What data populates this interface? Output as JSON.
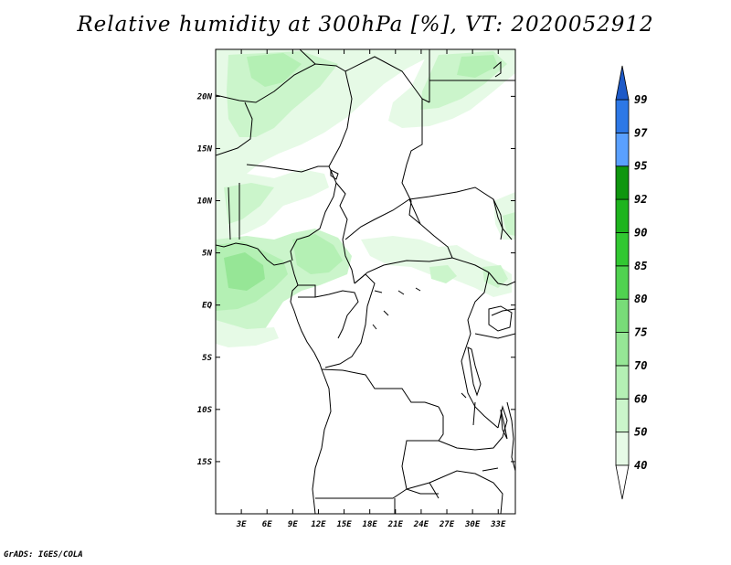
{
  "title": "Relative humidity at 300hPa [%], VT: 2020052912",
  "credit": "GrADS: IGES/COLA",
  "map": {
    "lon_range": [
      0,
      35
    ],
    "lat_range": [
      -20,
      24.5
    ],
    "x_ticks": [
      "3E",
      "6E",
      "9E",
      "12E",
      "15E",
      "18E",
      "21E",
      "24E",
      "27E",
      "30E",
      "33E"
    ],
    "x_tick_values": [
      3,
      6,
      9,
      12,
      15,
      18,
      21,
      24,
      27,
      30,
      33
    ],
    "y_ticks": [
      "20N",
      "15N",
      "10N",
      "5N",
      "EQ",
      "5S",
      "10S",
      "15S"
    ],
    "y_tick_values": [
      20,
      15,
      10,
      5,
      0,
      -5,
      -10,
      -15
    ]
  },
  "colorbar": {
    "levels": [
      "40",
      "50",
      "60",
      "70",
      "75",
      "80",
      "85",
      "90",
      "92",
      "95",
      "97",
      "99"
    ],
    "colors": [
      "#ffffff",
      "#e6fae6",
      "#cbf5cb",
      "#b4f0b4",
      "#96e696",
      "#78dc78",
      "#50d250",
      "#32c832",
      "#1eb41e",
      "#0f960f",
      "#5aa0ff",
      "#2d78e6",
      "#1e5ac8"
    ]
  },
  "colors": {
    "land_border": "#000000",
    "humidity_40_50": "#e6fae6",
    "humidity_50_60": "#cbf5cb",
    "humidity_60_70": "#b4f0b4",
    "humidity_70_75": "#96e696"
  }
}
